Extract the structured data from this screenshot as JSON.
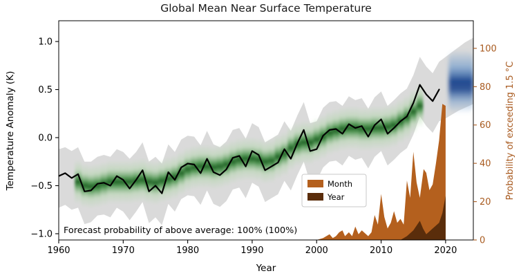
{
  "colors": {
    "band": "#d6d6d6",
    "observed_line": "#000000",
    "month": "#b4601e",
    "year": "#5a2d0b",
    "right_axis": "#a85a1f",
    "green_dark": "#1b5e20",
    "green_mid": "#3b8a3e",
    "green_light": "#a8d5a0",
    "blue_dark": "#16418c",
    "blue_mid": "#5b8fc9",
    "spine": "#000000",
    "legend_border": "#c8c8c8"
  },
  "chart_data": {
    "type": "line",
    "title": "Global Mean Near Surface Temperature",
    "xlabel": "Year",
    "ylabel_left": "Temperature Anomaly (K)",
    "ylabel_right": "Probability of exceeding 1.5 °C",
    "annotation": "Forecast probability of above average: 100% (100%)",
    "xlim": [
      1960,
      2024.3
    ],
    "ylim_left": [
      -1.065,
      1.216
    ],
    "ylim_right": [
      0,
      114.4
    ],
    "xticks": [
      1960,
      1970,
      1980,
      1990,
      2000,
      2010,
      2020
    ],
    "yticks_left": {
      "values": [
        -1.0,
        -0.5,
        0.0,
        0.5,
        1.0
      ],
      "labels": [
        "−1.0",
        "−0.5",
        "0.0",
        "0.5",
        "1.0"
      ]
    },
    "yticks_right": {
      "values": [
        0,
        20,
        40,
        60,
        80,
        100
      ],
      "labels": [
        "0",
        "20",
        "40",
        "60",
        "80",
        "100"
      ]
    },
    "legend": [
      {
        "label": "Month",
        "color": "#b4601e"
      },
      {
        "label": "Year",
        "color": "#5a2d0b"
      }
    ],
    "observed": {
      "years": [
        1960,
        1961,
        1962,
        1963,
        1964,
        1965,
        1966,
        1967,
        1968,
        1969,
        1970,
        1971,
        1972,
        1973,
        1974,
        1975,
        1976,
        1977,
        1978,
        1979,
        1980,
        1981,
        1982,
        1983,
        1984,
        1985,
        1986,
        1987,
        1988,
        1989,
        1990,
        1991,
        1992,
        1993,
        1994,
        1995,
        1996,
        1997,
        1998,
        1999,
        2000,
        2001,
        2002,
        2003,
        2004,
        2005,
        2006,
        2007,
        2008,
        2009,
        2010,
        2011,
        2012,
        2013,
        2014,
        2015,
        2016,
        2017,
        2018,
        2019
      ],
      "anomaly": [
        -0.4,
        -0.37,
        -0.42,
        -0.38,
        -0.56,
        -0.55,
        -0.48,
        -0.47,
        -0.5,
        -0.4,
        -0.44,
        -0.53,
        -0.44,
        -0.34,
        -0.56,
        -0.5,
        -0.58,
        -0.36,
        -0.44,
        -0.31,
        -0.27,
        -0.28,
        -0.37,
        -0.22,
        -0.36,
        -0.39,
        -0.33,
        -0.21,
        -0.19,
        -0.3,
        -0.14,
        -0.18,
        -0.34,
        -0.3,
        -0.26,
        -0.12,
        -0.22,
        -0.06,
        0.08,
        -0.14,
        -0.12,
        0.02,
        0.08,
        0.09,
        0.04,
        0.14,
        0.1,
        0.12,
        0.01,
        0.13,
        0.19,
        0.04,
        0.1,
        0.17,
        0.22,
        0.36,
        0.55,
        0.45,
        0.38,
        0.5
      ]
    },
    "uncertainty_band": {
      "years": [
        1960,
        1961,
        1962,
        1963,
        1964,
        1965,
        1966,
        1967,
        1968,
        1969,
        1970,
        1971,
        1972,
        1973,
        1974,
        1975,
        1976,
        1977,
        1978,
        1979,
        1980,
        1981,
        1982,
        1983,
        1984,
        1985,
        1986,
        1987,
        1988,
        1989,
        1990,
        1991,
        1992,
        1993,
        1994,
        1995,
        1996,
        1997,
        1998,
        1999,
        2000,
        2001,
        2002,
        2003,
        2004,
        2005,
        2006,
        2007,
        2008,
        2009,
        2010,
        2011,
        2012,
        2013,
        2014,
        2015,
        2016,
        2017,
        2018,
        2019,
        2020,
        2021,
        2022,
        2023,
        2024.3
      ],
      "upper": [
        -0.12,
        -0.1,
        -0.14,
        -0.1,
        -0.25,
        -0.25,
        -0.2,
        -0.18,
        -0.2,
        -0.12,
        -0.15,
        -0.22,
        -0.15,
        -0.05,
        -0.25,
        -0.2,
        -0.27,
        -0.07,
        -0.15,
        -0.02,
        0.02,
        0.01,
        -0.08,
        0.07,
        -0.07,
        -0.1,
        -0.04,
        0.08,
        0.1,
        -0.01,
        0.15,
        0.11,
        -0.05,
        -0.01,
        0.03,
        0.17,
        0.07,
        0.23,
        0.37,
        0.15,
        0.17,
        0.31,
        0.37,
        0.38,
        0.33,
        0.43,
        0.39,
        0.41,
        0.3,
        0.42,
        0.48,
        0.33,
        0.39,
        0.46,
        0.51,
        0.65,
        0.84,
        0.74,
        0.67,
        0.79,
        0.84,
        0.89,
        0.94,
        0.99,
        1.04
      ],
      "lower": [
        -0.73,
        -0.7,
        -0.75,
        -0.73,
        -0.9,
        -0.88,
        -0.81,
        -0.8,
        -0.83,
        -0.73,
        -0.77,
        -0.86,
        -0.77,
        -0.67,
        -0.89,
        -0.83,
        -0.91,
        -0.69,
        -0.77,
        -0.64,
        -0.6,
        -0.61,
        -0.7,
        -0.55,
        -0.69,
        -0.72,
        -0.66,
        -0.54,
        -0.52,
        -0.63,
        -0.47,
        -0.51,
        -0.67,
        -0.63,
        -0.59,
        -0.45,
        -0.55,
        -0.39,
        -0.25,
        -0.47,
        -0.45,
        -0.31,
        -0.25,
        -0.24,
        -0.29,
        -0.19,
        -0.23,
        -0.21,
        -0.32,
        -0.2,
        -0.14,
        -0.29,
        -0.23,
        -0.16,
        -0.11,
        0.03,
        0.22,
        0.12,
        0.05,
        0.17,
        0.2,
        0.24,
        0.28,
        0.31,
        0.35
      ]
    },
    "hindcast_green": {
      "half_width": 0.23,
      "years": [
        1963,
        1964,
        1965,
        1966,
        1967,
        1968,
        1969,
        1970,
        1971,
        1972,
        1973,
        1974,
        1975,
        1976,
        1977,
        1978,
        1979,
        1980,
        1981,
        1982,
        1983,
        1984,
        1985,
        1986,
        1987,
        1988,
        1989,
        1990,
        1991,
        1992,
        1993,
        1994,
        1995,
        1996,
        1997,
        1998,
        1999,
        2000,
        2001,
        2002,
        2003,
        2004,
        2005,
        2006,
        2007,
        2008,
        2009,
        2010,
        2011,
        2012,
        2013,
        2014,
        2015,
        2016
      ],
      "centers": [
        -0.46,
        -0.5,
        -0.51,
        -0.5,
        -0.48,
        -0.46,
        -0.46,
        -0.46,
        -0.46,
        -0.45,
        -0.44,
        -0.46,
        -0.47,
        -0.45,
        -0.43,
        -0.41,
        -0.37,
        -0.33,
        -0.31,
        -0.3,
        -0.3,
        -0.31,
        -0.3,
        -0.28,
        -0.25,
        -0.23,
        -0.22,
        -0.22,
        -0.23,
        -0.25,
        -0.24,
        -0.2,
        -0.17,
        -0.11,
        -0.07,
        -0.05,
        -0.05,
        -0.02,
        0.01,
        0.05,
        0.07,
        0.09,
        0.1,
        0.1,
        0.09,
        0.09,
        0.1,
        0.1,
        0.11,
        0.13,
        0.17,
        0.21,
        0.27,
        0.33
      ]
    },
    "forecast_blue": {
      "x0": 2020.5,
      "x1": 2024.3,
      "v0": 0.25,
      "v1": 0.9,
      "center": 0.62
    },
    "month_prob": {
      "x": [
        2000,
        2001,
        2002,
        2002.5,
        2003,
        2003.5,
        2004,
        2004.4,
        2005,
        2005.5,
        2006,
        2006.5,
        2007,
        2008,
        2008.5,
        2009,
        2009.5,
        2010,
        2010.5,
        2011,
        2011.5,
        2012,
        2012.5,
        2013,
        2013.5,
        2014,
        2014.5,
        2015,
        2015.5,
        2016,
        2016.6,
        2017,
        2017.5,
        2018,
        2018.5,
        2019,
        2019.5,
        2020
      ],
      "values": [
        0,
        1,
        3,
        1,
        2,
        4,
        5,
        2,
        4,
        2,
        7,
        3,
        5,
        2,
        4,
        13,
        8,
        24,
        12,
        6,
        9,
        15,
        9,
        11,
        8,
        31,
        22,
        46,
        30,
        22,
        37,
        35,
        26,
        29,
        40,
        52,
        71,
        70
      ]
    },
    "year_prob": {
      "x": [
        2013,
        2014,
        2015,
        2016,
        2016.5,
        2017,
        2018,
        2019,
        2019.5,
        2020
      ],
      "values": [
        0,
        2,
        5,
        10,
        6,
        3,
        6,
        9,
        14,
        23
      ]
    }
  }
}
